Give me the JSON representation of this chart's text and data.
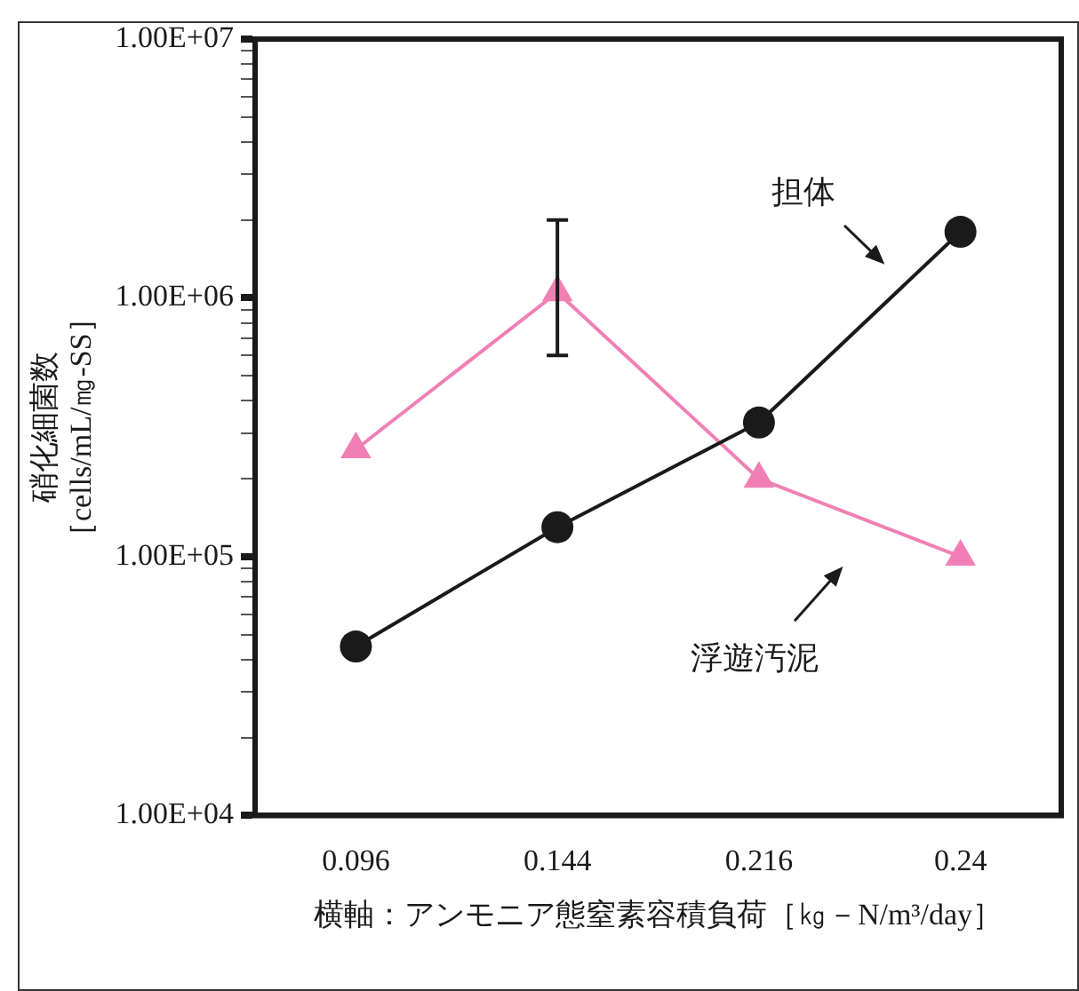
{
  "chart_data": {
    "type": "line",
    "xlabel": "横軸：アンモニア態窒素容積負荷［㎏－N/m³/day］",
    "ylabel": "硝化細菌数［cells/mL/㎎-SS］",
    "categories": [
      "0.096",
      "0.144",
      "0.216",
      "0.24"
    ],
    "log": "y",
    "ylim": [
      10000,
      10000000
    ],
    "yticks": [
      {
        "value": 10000,
        "label": "1.00E+04"
      },
      {
        "value": 20000,
        "label": null
      },
      {
        "value": 30000,
        "label": null
      },
      {
        "value": 40000,
        "label": null
      },
      {
        "value": 50000,
        "label": null
      },
      {
        "value": 60000,
        "label": null
      },
      {
        "value": 70000,
        "label": null
      },
      {
        "value": 80000,
        "label": null
      },
      {
        "value": 90000,
        "label": null
      },
      {
        "value": 100000,
        "label": "1.00E+05"
      },
      {
        "value": 200000,
        "label": null
      },
      {
        "value": 300000,
        "label": null
      },
      {
        "value": 400000,
        "label": null
      },
      {
        "value": 500000,
        "label": null
      },
      {
        "value": 600000,
        "label": null
      },
      {
        "value": 700000,
        "label": null
      },
      {
        "value": 800000,
        "label": null
      },
      {
        "value": 900000,
        "label": null
      },
      {
        "value": 1000000,
        "label": "1.00E+06"
      },
      {
        "value": 2000000,
        "label": null
      },
      {
        "value": 3000000,
        "label": null
      },
      {
        "value": 4000000,
        "label": null
      },
      {
        "value": 5000000,
        "label": null
      },
      {
        "value": 6000000,
        "label": null
      },
      {
        "value": 7000000,
        "label": null
      },
      {
        "value": 8000000,
        "label": null
      },
      {
        "value": 9000000,
        "label": null
      },
      {
        "value": 10000000,
        "label": "1.00E+07"
      }
    ],
    "annotations": [
      "担体",
      "浮遊汚泥"
    ],
    "grid": false,
    "legend": false,
    "series": [
      {
        "color": "#1a1a1a",
        "marker": "circle",
        "values": [
          45000,
          130000,
          330000,
          1800000
        ]
      },
      {
        "color": "#f080b4",
        "marker": "triangle",
        "values": [
          260000,
          1050000,
          200000,
          100000
        ],
        "errors": [
          null,
          [
            600000,
            2000000
          ],
          null,
          null
        ]
      }
    ]
  }
}
